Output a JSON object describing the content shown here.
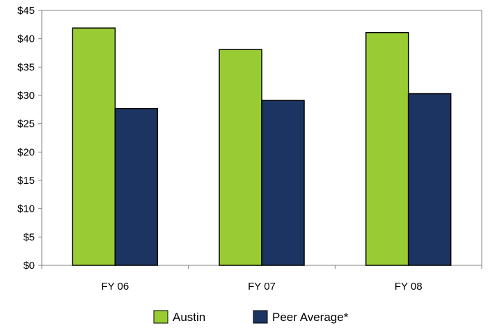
{
  "chart_data": {
    "type": "bar",
    "categories": [
      "FY 06",
      "FY 07",
      "FY 08"
    ],
    "series": [
      {
        "name": "Austin",
        "values": [
          41.9,
          38.1,
          41.1
        ],
        "color": "#99cc33"
      },
      {
        "name": "Peer Average*",
        "values": [
          27.7,
          29.1,
          30.3
        ],
        "color": "#1c3461"
      }
    ],
    "yticks": [
      "$0",
      "$5",
      "$10",
      "$15",
      "$20",
      "$25",
      "$30",
      "$35",
      "$40",
      "$45"
    ],
    "ylim": [
      0,
      45
    ],
    "ystep": 5,
    "grid": false,
    "legend": "bottom-center"
  }
}
